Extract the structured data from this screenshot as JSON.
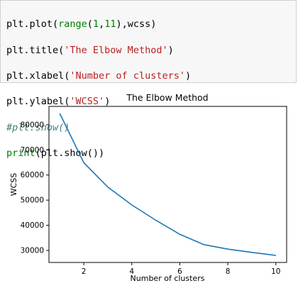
{
  "code": {
    "lines": [
      [
        "plt.plot(",
        "range",
        "(",
        "1",
        ",",
        "11",
        "),wcss)"
      ],
      [
        "plt.title(",
        "'The Elbow Method'",
        ")"
      ],
      [
        "plt.xlabel(",
        "'Number of clusters'",
        ")"
      ],
      [
        "plt.ylabel(",
        "'WCSS'",
        ")"
      ],
      [
        "#plt.show()"
      ],
      [
        "print",
        "(plt.show())"
      ]
    ]
  },
  "chart_data": {
    "type": "line",
    "title": "The Elbow Method",
    "xlabel": "Number of clusters",
    "ylabel": "WCSS",
    "x": [
      1,
      2,
      3,
      4,
      5,
      6,
      7,
      8,
      9,
      10
    ],
    "series": [
      {
        "values": [
          84500,
          64900,
          55200,
          48100,
          42000,
          36400,
          32300,
          30500,
          29200,
          28000
        ],
        "color": "#1f77b4"
      }
    ],
    "xlim": [
      0.55,
      10.45
    ],
    "ylim": [
      25200,
      87300
    ],
    "xticks": [
      2,
      4,
      6,
      8,
      10
    ],
    "yticks": [
      30000,
      40000,
      50000,
      60000,
      70000,
      80000
    ],
    "grid": false
  }
}
